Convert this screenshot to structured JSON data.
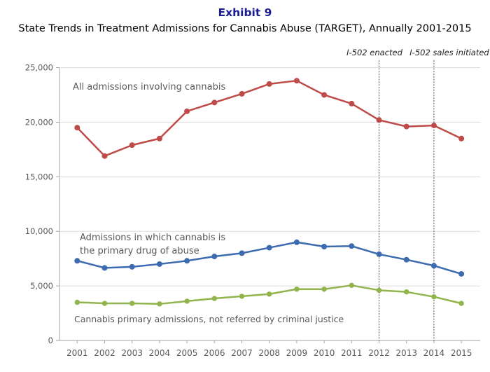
{
  "page": {
    "title": "Exhibit 9",
    "subtitle": "State Trends in Treatment Admissions for Cannabis Abuse (TARGET), Annually 2001-2015"
  },
  "colors": {
    "title": "#1B1B94",
    "gridline": "#DCDCDC",
    "axis": "#A6A6A6",
    "tick_text": "#595959",
    "reference_line": "#4D4D4D",
    "series_red": "#BE4B48",
    "series_blue": "#3C6BB0",
    "series_green": "#92B44C"
  },
  "chart_data": {
    "type": "line",
    "title": "Exhibit 9",
    "subtitle": "State Trends in Treatment Admissions for Cannabis Abuse (TARGET), Annually 2001-2015",
    "xlabel": "",
    "ylabel": "",
    "ylim": [
      0,
      25000
    ],
    "grid": "horizontal",
    "legend": "inline-labels",
    "categories": [
      "2001",
      "2002",
      "2003",
      "2004",
      "2005",
      "2006",
      "2007",
      "2008",
      "2009",
      "2010",
      "2011",
      "2012",
      "2013",
      "2014",
      "2015"
    ],
    "yticks": [
      {
        "value": 0,
        "label": "0"
      },
      {
        "value": 5000,
        "label": "5,000"
      },
      {
        "value": 10000,
        "label": "10,000"
      },
      {
        "value": 15000,
        "label": "15,000"
      },
      {
        "value": 20000,
        "label": "20,000"
      },
      {
        "value": 25000,
        "label": "25,000"
      }
    ],
    "series": [
      {
        "name": "All admissions involving cannabis",
        "color": "#BE4B48",
        "values": [
          19500,
          16900,
          17900,
          18500,
          21000,
          21800,
          22600,
          23500,
          23800,
          22500,
          21700,
          20200,
          19600,
          19700,
          18500
        ]
      },
      {
        "name": "Admissions in which cannabis is\nthe primary drug of abuse",
        "color": "#3C6BB0",
        "values": [
          7300,
          6650,
          6750,
          7000,
          7300,
          7700,
          8000,
          8500,
          9000,
          8600,
          8650,
          7900,
          7400,
          6850,
          6100
        ]
      },
      {
        "name": "Cannabis primary admissions, not referred by criminal justice",
        "color": "#92B44C",
        "values": [
          3500,
          3400,
          3400,
          3350,
          3600,
          3850,
          4050,
          4250,
          4700,
          4700,
          5050,
          4600,
          4450,
          4000,
          3400
        ]
      }
    ],
    "annotations": [
      {
        "label": "I-502 enacted",
        "year": "2012",
        "line_style": "dotted"
      },
      {
        "label": "I-502 sales initiated",
        "year": "2014",
        "line_style": "dotted"
      }
    ]
  }
}
